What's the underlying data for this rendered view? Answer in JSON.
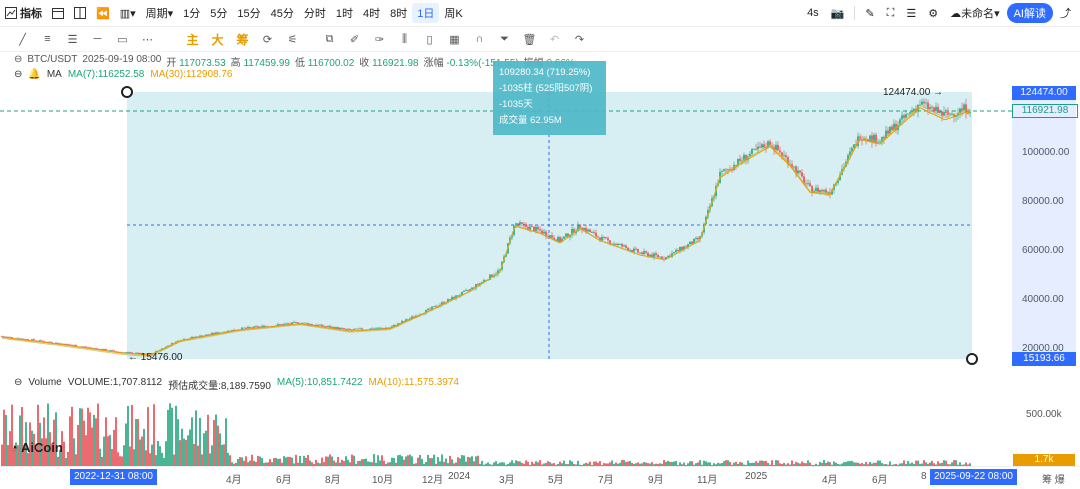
{
  "toolbar": {
    "indicators": "指标",
    "period": "周期",
    "timeframes": [
      "1分",
      "5分",
      "15分",
      "45分",
      "分时",
      "1时",
      "4时",
      "8时",
      "1日",
      "周K"
    ],
    "active_timeframe": "1日",
    "right_items": {
      "speed": "4s",
      "layout_name": "未命名",
      "ai_button": "AI解读"
    }
  },
  "drawing_tools": {
    "main_label": "主",
    "big_label": "大",
    "chip_label": "筹"
  },
  "symbol_info": {
    "pair": "BTC/USDT",
    "datetime": "2025-09-19 08:00",
    "open_label": "开",
    "open": "117073.53",
    "high_label": "高",
    "high": "117459.99",
    "low_label": "低",
    "low": "116700.02",
    "close_label": "收",
    "close": "116921.98",
    "change_label": "涨幅",
    "change": "-0.13%(-151.55)",
    "amplitude_label": "振幅",
    "amplitude": "0.66%"
  },
  "ma_info": {
    "label": "MA",
    "ma7": "MA(7):116252.58",
    "ma30": "MA(30):112908.76"
  },
  "measure_tooltip": {
    "line1": "109280.34 (719.25%)",
    "line2": "-1035柱 (525阳507阴)",
    "line3": "-1035天",
    "line4": "成交量 62.95M"
  },
  "price_axis": {
    "ticks": [
      "100000.00",
      "80000.00",
      "60000.00",
      "40000.00",
      "20000.00"
    ],
    "high_box": "124474.00",
    "current_box": "116921.98",
    "low_box": "15193.66"
  },
  "annotations": {
    "high_label": "124474.00",
    "low_label": "15476.00"
  },
  "volume_info": {
    "title": "Volume",
    "volume": "VOLUME:1,707.8112",
    "estimated": "预估成交量:8,189.7590",
    "ma5": "MA(5):10,851.7422",
    "ma10": "MA(10):11,575.3974",
    "axis_tick": "500.00k",
    "current_box": "1.7k"
  },
  "date_axis": {
    "labels": [
      "4月",
      "6月",
      "8月",
      "10月",
      "12月",
      "2024",
      "3月",
      "5月",
      "7月",
      "9月",
      "11月",
      "2025",
      "4月",
      "6月",
      "8"
    ],
    "start_box": "2022-12-31 08:00",
    "end_box": "2025-09-22 08:00",
    "corner": "筹  爆"
  },
  "watermark": "AiCoin",
  "colors": {
    "up": "#1ea37a",
    "down": "#e5484d",
    "ma30": "#e89c00",
    "measure": "#4fb8c8",
    "accent": "#2f6bff"
  }
}
